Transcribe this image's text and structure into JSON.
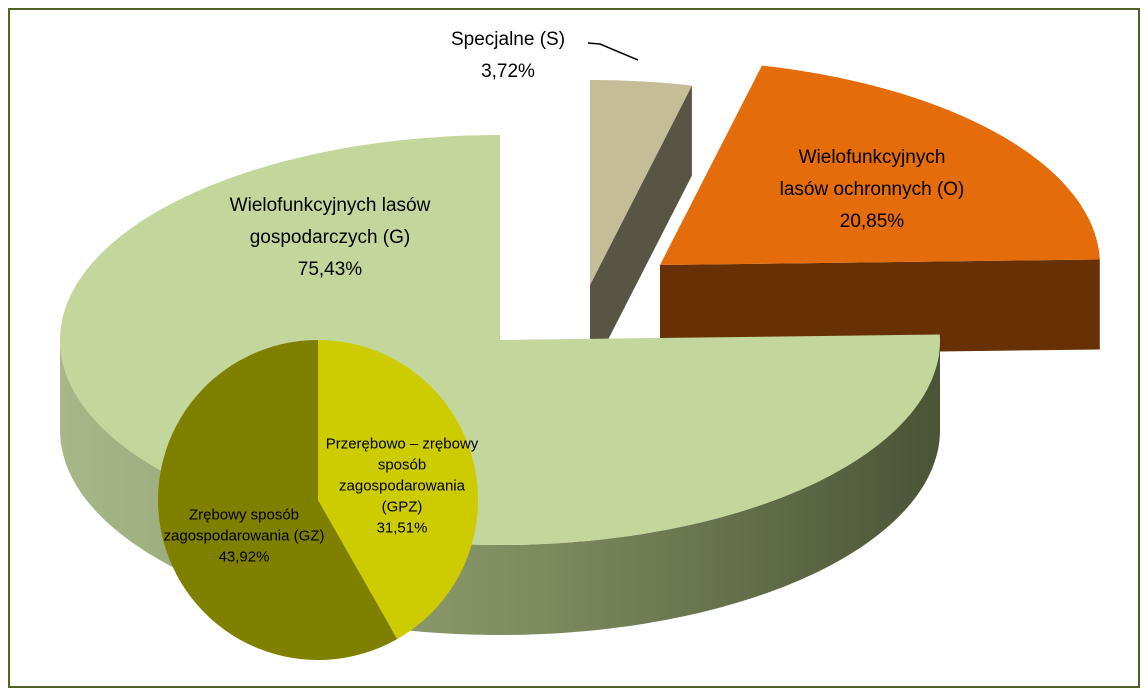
{
  "chart_data": [
    {
      "type": "pie3d",
      "categories": [
        "Wielofunkcyjnych lasów gospodarczych (G)",
        "Wielofunkcyjnych lasów ochronnych (O)",
        "Specjalne (S)"
      ],
      "values": [
        75.43,
        20.85,
        3.72
      ],
      "value_labels": [
        "75,43%",
        "20,85%",
        "3,72%"
      ],
      "colors": [
        "#c3d69b",
        "#e46c0a",
        "#c4bd97"
      ]
    },
    {
      "type": "pie",
      "categories": [
        "Przerębowo – zrębowy sposób zagospodarowania (GPZ)",
        "Zrębowy sposób zagospodarowania (GZ)"
      ],
      "values": [
        31.51,
        43.92
      ],
      "value_labels": [
        "31,51%",
        "43,92%"
      ],
      "colors": [
        "#cccc00",
        "#7f7f00"
      ]
    }
  ]
}
